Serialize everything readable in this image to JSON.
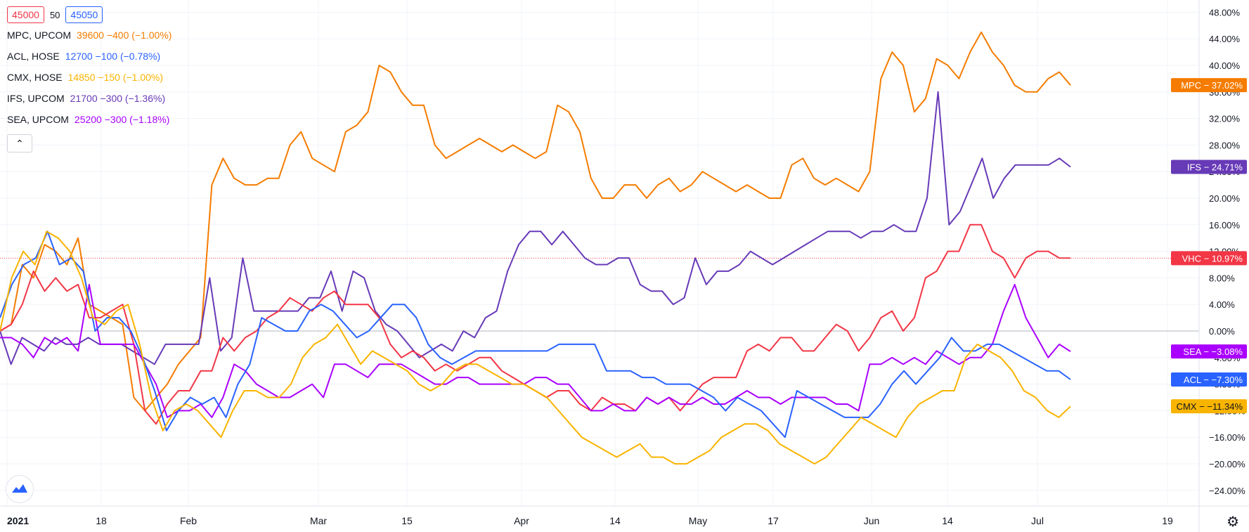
{
  "toolbar": {
    "bid": "45000",
    "spread": "50",
    "ask": "45050"
  },
  "legend": [
    {
      "symbol": "MPC, UPCOM",
      "values": "39600 −400 (−1.00%)",
      "color": "#f57c00"
    },
    {
      "symbol": "ACL, HOSE",
      "values": "12700 −100 (−0.78%)",
      "color": "#2962ff"
    },
    {
      "symbol": "CMX, HOSE",
      "values": "14850 −150 (−1.00%)",
      "color": "#f9b400"
    },
    {
      "symbol": "IFS, UPCOM",
      "values": "21700 −300 (−1.36%)",
      "color": "#673ab7"
    },
    {
      "symbol": "SEA, UPCOM",
      "values": "25200 −300 (−1.18%)",
      "color": "#aa00ff"
    }
  ],
  "collapse_icon": "chevron-up-icon",
  "settings_icon": "gear-icon",
  "logo_icon": "tradingview-logo-icon",
  "chart_data": {
    "type": "line",
    "x_ticks": [
      "2021",
      "18",
      "Feb",
      "Mar",
      "15",
      "Apr",
      "14",
      "May",
      "17",
      "Jun",
      "14",
      "Jul",
      "19"
    ],
    "y_ticks": [
      "48.00%",
      "44.00%",
      "40.00%",
      "36.00%",
      "32.00%",
      "28.00%",
      "24.00%",
      "20.00%",
      "16.00%",
      "12.00%",
      "8.00%",
      "4.00%",
      "0.00%",
      "−4.00%",
      "−8.00%",
      "−12.00%",
      "−16.00%",
      "−20.00%",
      "−24.00%"
    ],
    "ylim": [
      -25,
      50
    ],
    "grid": true,
    "series": [
      {
        "name": "MPC",
        "color": "#f57c00",
        "label": "MPC − 37.02%",
        "values": [
          0,
          1,
          10,
          8,
          13,
          12,
          10,
          14,
          4,
          3,
          2,
          1,
          -10,
          -12,
          -10,
          -8,
          -5,
          -3,
          -1,
          22,
          26,
          23,
          22,
          22,
          23,
          23,
          28,
          30,
          26,
          25,
          24,
          30,
          31,
          33,
          40,
          39,
          36,
          34,
          34,
          28,
          26,
          27,
          28,
          29,
          28,
          27,
          28,
          27,
          26,
          27,
          34,
          33,
          30,
          23,
          20,
          20,
          22,
          22,
          20,
          22,
          23,
          21,
          22,
          24,
          23,
          22,
          21,
          22,
          21,
          20,
          20,
          25,
          26,
          23,
          22,
          23,
          22,
          21,
          24,
          38,
          42,
          40,
          33,
          35,
          41,
          40,
          38,
          42,
          45,
          42,
          40,
          37,
          36,
          36,
          38,
          39,
          37.02
        ]
      },
      {
        "name": "IFS",
        "color": "#673ab7",
        "label": "IFS − 24.71%",
        "values": [
          0,
          -5,
          -1,
          -2,
          -3,
          -1,
          -2,
          -2,
          -1,
          -2,
          -2,
          -2,
          -3,
          -4,
          -5,
          -2,
          -2,
          -2,
          -2,
          8,
          -3,
          -1,
          11,
          3,
          3,
          3,
          3,
          3,
          5,
          5,
          9,
          3,
          9,
          8,
          3,
          1,
          0,
          -2,
          -4,
          -3,
          -2,
          -3,
          0,
          -1,
          2,
          3,
          9,
          13,
          15,
          15,
          13,
          15,
          13,
          11,
          10,
          10,
          11,
          11,
          7,
          6,
          6,
          4,
          5,
          11,
          7,
          9,
          9,
          10,
          12,
          11,
          10,
          11,
          12,
          13,
          14,
          15,
          15,
          15,
          14,
          15,
          15,
          16,
          15,
          15,
          20,
          36,
          16,
          18,
          22,
          26,
          20,
          23,
          25,
          25,
          25,
          25,
          26,
          24.71
        ]
      },
      {
        "name": "VHC",
        "color": "#f23645",
        "label": "VHC − 10.97%",
        "values": [
          0,
          1,
          4,
          9,
          6,
          8,
          6,
          7,
          2,
          2,
          3,
          4,
          -2,
          -12,
          -14,
          -11,
          -9,
          -9,
          -6,
          -6,
          -1,
          -3,
          -1,
          0,
          2,
          3,
          5,
          4,
          3,
          5,
          6,
          4,
          4,
          4,
          2,
          -2,
          -4,
          -3,
          -4,
          -6,
          -5,
          -6,
          -5,
          -4,
          -4,
          -6,
          -7,
          -8,
          -9,
          -10,
          -9,
          -9,
          -11,
          -12,
          -10,
          -11,
          -11,
          -12,
          -10,
          -11,
          -10,
          -12,
          -10,
          -8,
          -7,
          -7,
          -7,
          -3,
          -2,
          -3,
          -1,
          -1,
          -3,
          -3,
          -1,
          1,
          0,
          -3,
          -1,
          2,
          3,
          0,
          2,
          8,
          9,
          12,
          12,
          16,
          16,
          12,
          11,
          8,
          11,
          12,
          12,
          11,
          10.97
        ]
      },
      {
        "name": "SEA",
        "color": "#aa00ff",
        "label": "SEA − −3.08%",
        "values": [
          -1,
          -1,
          -2,
          -4,
          -1,
          -2,
          -1,
          -3,
          7,
          -2,
          -2,
          -2,
          -2,
          -5,
          -8,
          -13,
          -12,
          -12,
          -11,
          -13,
          -10,
          -5,
          -6,
          -8,
          -9,
          -10,
          -10,
          -9,
          -8,
          -10,
          -5,
          -5,
          -6,
          -7,
          -5,
          -5,
          -5,
          -6,
          -7,
          -8,
          -8,
          -7,
          -7,
          -8,
          -8,
          -8,
          -8,
          -8,
          -7,
          -7,
          -8,
          -8,
          -10,
          -12,
          -12,
          -11,
          -12,
          -12,
          -10,
          -11,
          -10,
          -11,
          -11,
          -10,
          -11,
          -11,
          -10,
          -9,
          -10,
          -10,
          -11,
          -10,
          -10,
          -10,
          -10,
          -11,
          -11,
          -12,
          -5,
          -5,
          -4,
          -5,
          -4,
          -5,
          -3,
          -4,
          -5,
          -4,
          -4,
          -2,
          3,
          7,
          2,
          -1,
          -4,
          -2,
          -3.08
        ]
      },
      {
        "name": "ACL",
        "color": "#2962ff",
        "label": "ACL − −7.30%",
        "values": [
          2,
          7,
          10,
          11,
          15,
          10,
          11,
          9,
          0,
          2,
          2,
          0,
          -4,
          -9,
          -15,
          -12,
          -10,
          -11,
          -10,
          -13,
          -8,
          -5,
          2,
          1,
          0,
          0,
          3,
          4,
          3,
          1,
          -1,
          0,
          2,
          4,
          4,
          2,
          -2,
          -4,
          -5,
          -4,
          -3,
          -3,
          -3,
          -3,
          -3,
          -3,
          -3,
          -2,
          -2,
          -2,
          -2,
          -6,
          -6,
          -6,
          -7,
          -7,
          -8,
          -8,
          -8,
          -9,
          -10,
          -12,
          -10,
          -11,
          -12,
          -14,
          -16,
          -9,
          -10,
          -11,
          -12,
          -13,
          -13,
          -13,
          -11,
          -8,
          -6,
          -8,
          -6,
          -4,
          -1,
          -3,
          -3,
          -2,
          -2,
          -3,
          -4,
          -5,
          -6,
          -6,
          -7.3
        ]
      },
      {
        "name": "CMX",
        "color": "#f9b400",
        "label": "CMX − −11.34%",
        "values": [
          0,
          8,
          12,
          10,
          15,
          14,
          12,
          8,
          2,
          1,
          3,
          4,
          -2,
          -10,
          -15,
          -12,
          -11,
          -12,
          -14,
          -16,
          -12,
          -9,
          -9,
          -10,
          -10,
          -8,
          -4,
          -2,
          -1,
          1,
          -2,
          -5,
          -3,
          -4,
          -5,
          -6,
          -8,
          -9,
          -8,
          -6,
          -5,
          -5,
          -6,
          -7,
          -8,
          -8,
          -9,
          -10,
          -12,
          -14,
          -16,
          -17,
          -18,
          -19,
          -18,
          -17,
          -19,
          -19,
          -20,
          -20,
          -19,
          -18,
          -16,
          -15,
          -14,
          -14,
          -15,
          -17,
          -18,
          -19,
          -20,
          -19,
          -17,
          -15,
          -13,
          -14,
          -15,
          -16,
          -13,
          -11,
          -10,
          -9,
          -9,
          -4,
          -2,
          -3,
          -4,
          -6,
          -9,
          -10,
          -12,
          -13,
          -11.34
        ]
      }
    ]
  }
}
